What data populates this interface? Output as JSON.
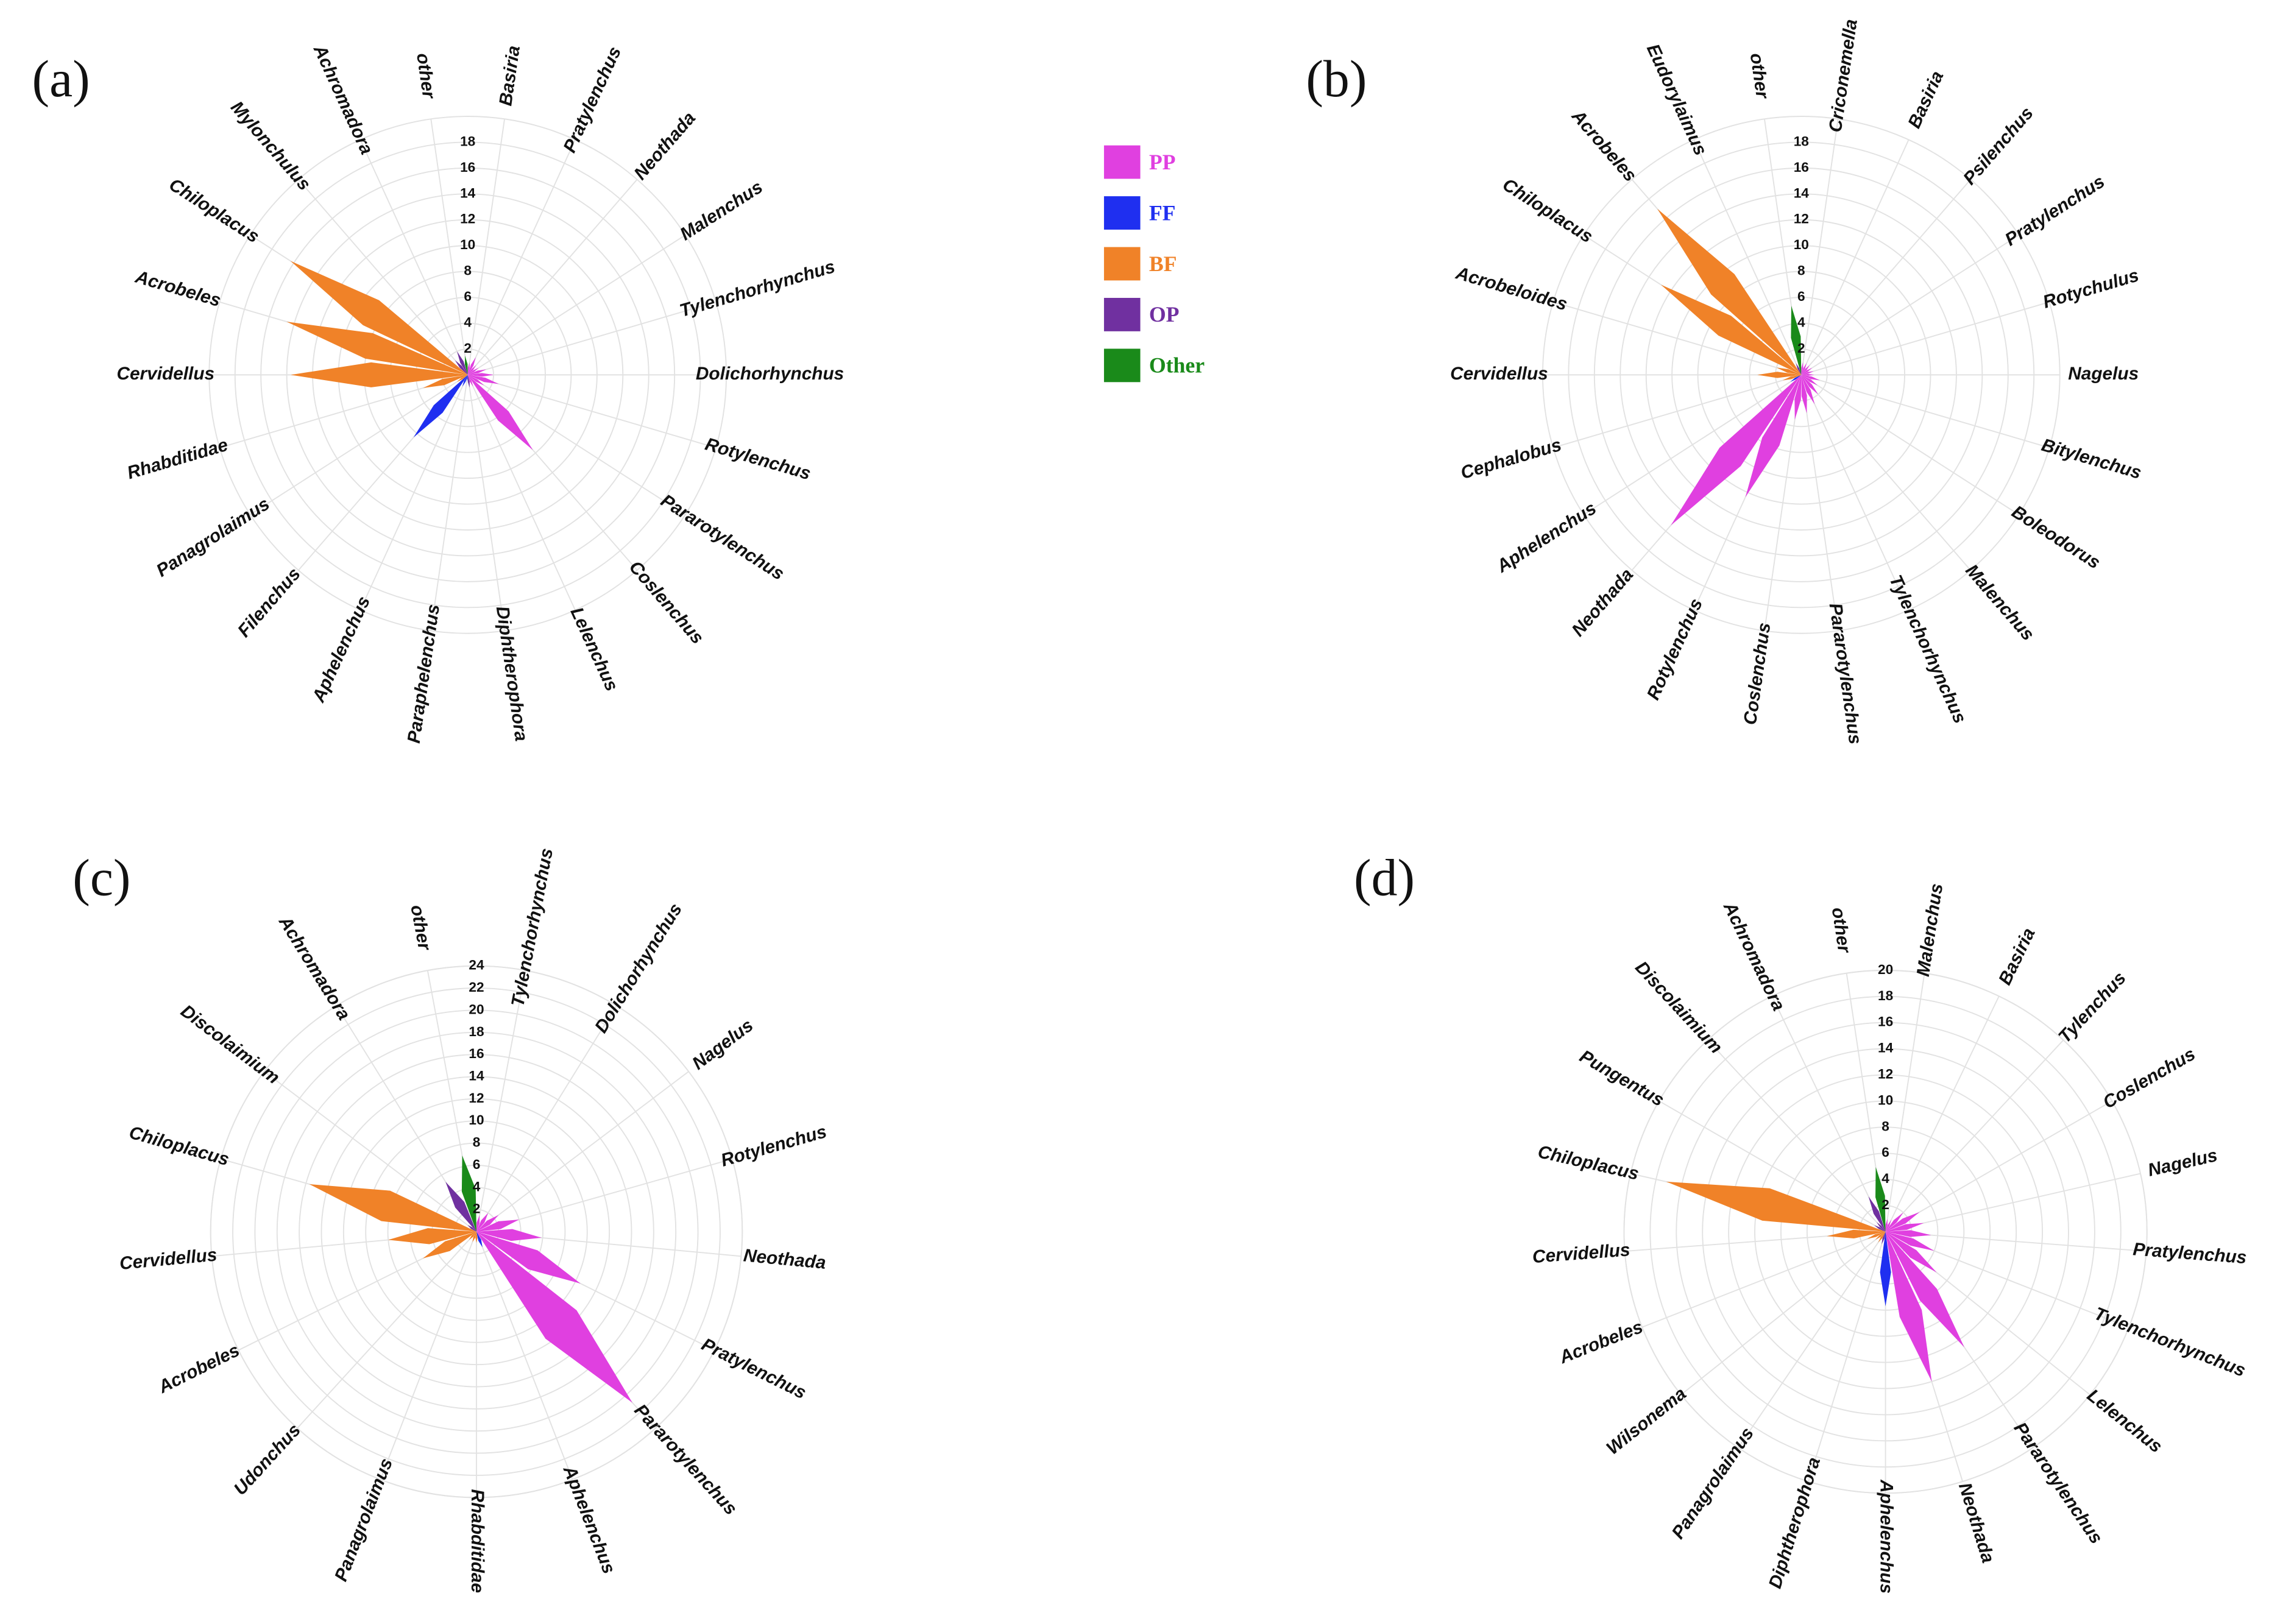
{
  "chart_data": [
    {
      "type": "rose",
      "label": "(a)",
      "categories": [
        "other",
        "Basiria",
        "Pratylenchus",
        "Neothada",
        "Malenchus",
        "Tylenchorhynchus",
        "Dolichorhynchus",
        "Rotylenchus",
        "Pararotylenchus",
        "Coslenchus",
        "Lelenchus",
        "Diphtherophora",
        "Paraphelenchus",
        "Aphelenchus",
        "Filenchus",
        "Panagrolaimus",
        "Rhabditidae",
        "Cervidellus",
        "Acrobeles",
        "Chiloplacus",
        "Mylonchulus",
        "Achromadora"
      ],
      "values": [
        1.5,
        1,
        1.5,
        1,
        1,
        1.5,
        2,
        2.5,
        1.5,
        7.7,
        1,
        1,
        0.5,
        1,
        6.4,
        1,
        3.6,
        13.7,
        14.6,
        16.3,
        1.5,
        2
      ],
      "colors": [
        "#1a8a1a",
        "#e040e0",
        "#e040e0",
        "#e040e0",
        "#e040e0",
        "#e040e0",
        "#e040e0",
        "#e040e0",
        "#e040e0",
        "#e040e0",
        "#e040e0",
        "#7030a0",
        "#1f2ff0",
        "#1f2ff0",
        "#1f2ff0",
        "#f08228",
        "#f08228",
        "#f08228",
        "#f08228",
        "#f08228",
        "#7030a0",
        "#7030a0"
      ],
      "ylim": [
        0,
        20
      ],
      "yticks": [
        2,
        4,
        6,
        8,
        10,
        12,
        14,
        16,
        18
      ]
    },
    {
      "type": "rose",
      "label": "(b)",
      "categories": [
        "other",
        "Criconemella",
        "Basiria",
        "Psilenchus",
        "Pratylenchus",
        "Rotychulus",
        "Nagelus",
        "Bitylenchus",
        "Boleodorus",
        "Malenchus",
        "Tylenchorhynchus",
        "Pararotylenchus",
        "Coslenchus",
        "Rotylenchus",
        "Neothada",
        "Aphelenchus",
        "Cephalobus",
        "Cervidellus",
        "Acrobeloides",
        "Chiloplacus",
        "Acrobeles",
        "Eudorylaimus"
      ],
      "values": [
        5.4,
        1,
        1,
        1,
        1,
        1,
        1,
        1.5,
        1.5,
        2,
        2.5,
        3,
        3.5,
        10.4,
        15.4,
        1,
        1.5,
        3.4,
        2,
        12.9,
        17,
        1
      ],
      "colors": [
        "#1a8a1a",
        "#e040e0",
        "#e040e0",
        "#e040e0",
        "#e040e0",
        "#e040e0",
        "#e040e0",
        "#e040e0",
        "#e040e0",
        "#e040e0",
        "#e040e0",
        "#e040e0",
        "#e040e0",
        "#e040e0",
        "#e040e0",
        "#1f2ff0",
        "#f08228",
        "#f08228",
        "#f08228",
        "#f08228",
        "#f08228",
        "#7030a0"
      ],
      "ylim": [
        0,
        20
      ],
      "yticks": [
        2,
        4,
        6,
        8,
        10,
        12,
        14,
        16,
        18
      ]
    },
    {
      "type": "rose",
      "label": "(c)",
      "categories": [
        "other",
        "Tylenchorhynchus",
        "Dolichorhynchus",
        "Nagelus",
        "Rotylenchus",
        "Neothada",
        "Pratylenchus",
        "Pararotylenchus",
        "Aphelenchus",
        "Rhabditidae",
        "Panagrolaimus",
        "Udonchus",
        "Acrobeles",
        "Cervidellus",
        "Chiloplacus",
        "Discolaimium",
        "Achromadora"
      ],
      "values": [
        7,
        1.5,
        2,
        2.5,
        4,
        5.9,
        10.5,
        20.9,
        1.5,
        1,
        1,
        1,
        5.4,
        8,
        15.7,
        1,
        5.3
      ],
      "colors": [
        "#1a8a1a",
        "#e040e0",
        "#e040e0",
        "#e040e0",
        "#e040e0",
        "#e040e0",
        "#e040e0",
        "#e040e0",
        "#1f2ff0",
        "#f08228",
        "#f08228",
        "#f08228",
        "#f08228",
        "#f08228",
        "#f08228",
        "#7030a0",
        "#7030a0"
      ],
      "ylim": [
        0,
        24
      ],
      "yticks": [
        2,
        4,
        6,
        8,
        10,
        12,
        14,
        16,
        18,
        20,
        22,
        24
      ]
    },
    {
      "type": "rose",
      "label": "(d)",
      "categories": [
        "other",
        "Malenchus",
        "Basiria",
        "Tylenchus",
        "Coslenchus",
        "Nagelus",
        "Pratylenchus",
        "Tylenchorhynchus",
        "Lelenchus",
        "Pararotylenchus",
        "Neothada",
        "Aphelenchus",
        "Diphtherophora",
        "Panagrolaimus",
        "Wilsonema",
        "Acrobeles",
        "Cervidellus",
        "Chiloplacus",
        "Pungentus",
        "Discolaimium",
        "Achromadora"
      ],
      "values": [
        5,
        1,
        1,
        2,
        3,
        3,
        3.5,
        4,
        5,
        10.7,
        12,
        5.7,
        1,
        1,
        1,
        1.5,
        4.5,
        17.2,
        1,
        1,
        3
      ],
      "colors": [
        "#1a8a1a",
        "#e040e0",
        "#e040e0",
        "#e040e0",
        "#e040e0",
        "#e040e0",
        "#e040e0",
        "#e040e0",
        "#e040e0",
        "#e040e0",
        "#e040e0",
        "#1f2ff0",
        "#7030a0",
        "#f08228",
        "#f08228",
        "#f08228",
        "#f08228",
        "#f08228",
        "#7030a0",
        "#7030a0",
        "#7030a0"
      ],
      "ylim": [
        0,
        20
      ],
      "yticks": [
        2,
        4,
        6,
        8,
        10,
        12,
        14,
        16,
        18,
        20
      ]
    }
  ],
  "legend": {
    "items": [
      {
        "name": "PP",
        "color": "#e040e0"
      },
      {
        "name": "FF",
        "color": "#1f2ff0"
      },
      {
        "name": "BF",
        "color": "#f08228"
      },
      {
        "name": "OP",
        "color": "#7030a0"
      },
      {
        "name": "Other",
        "color": "#1a8a1a"
      }
    ]
  }
}
